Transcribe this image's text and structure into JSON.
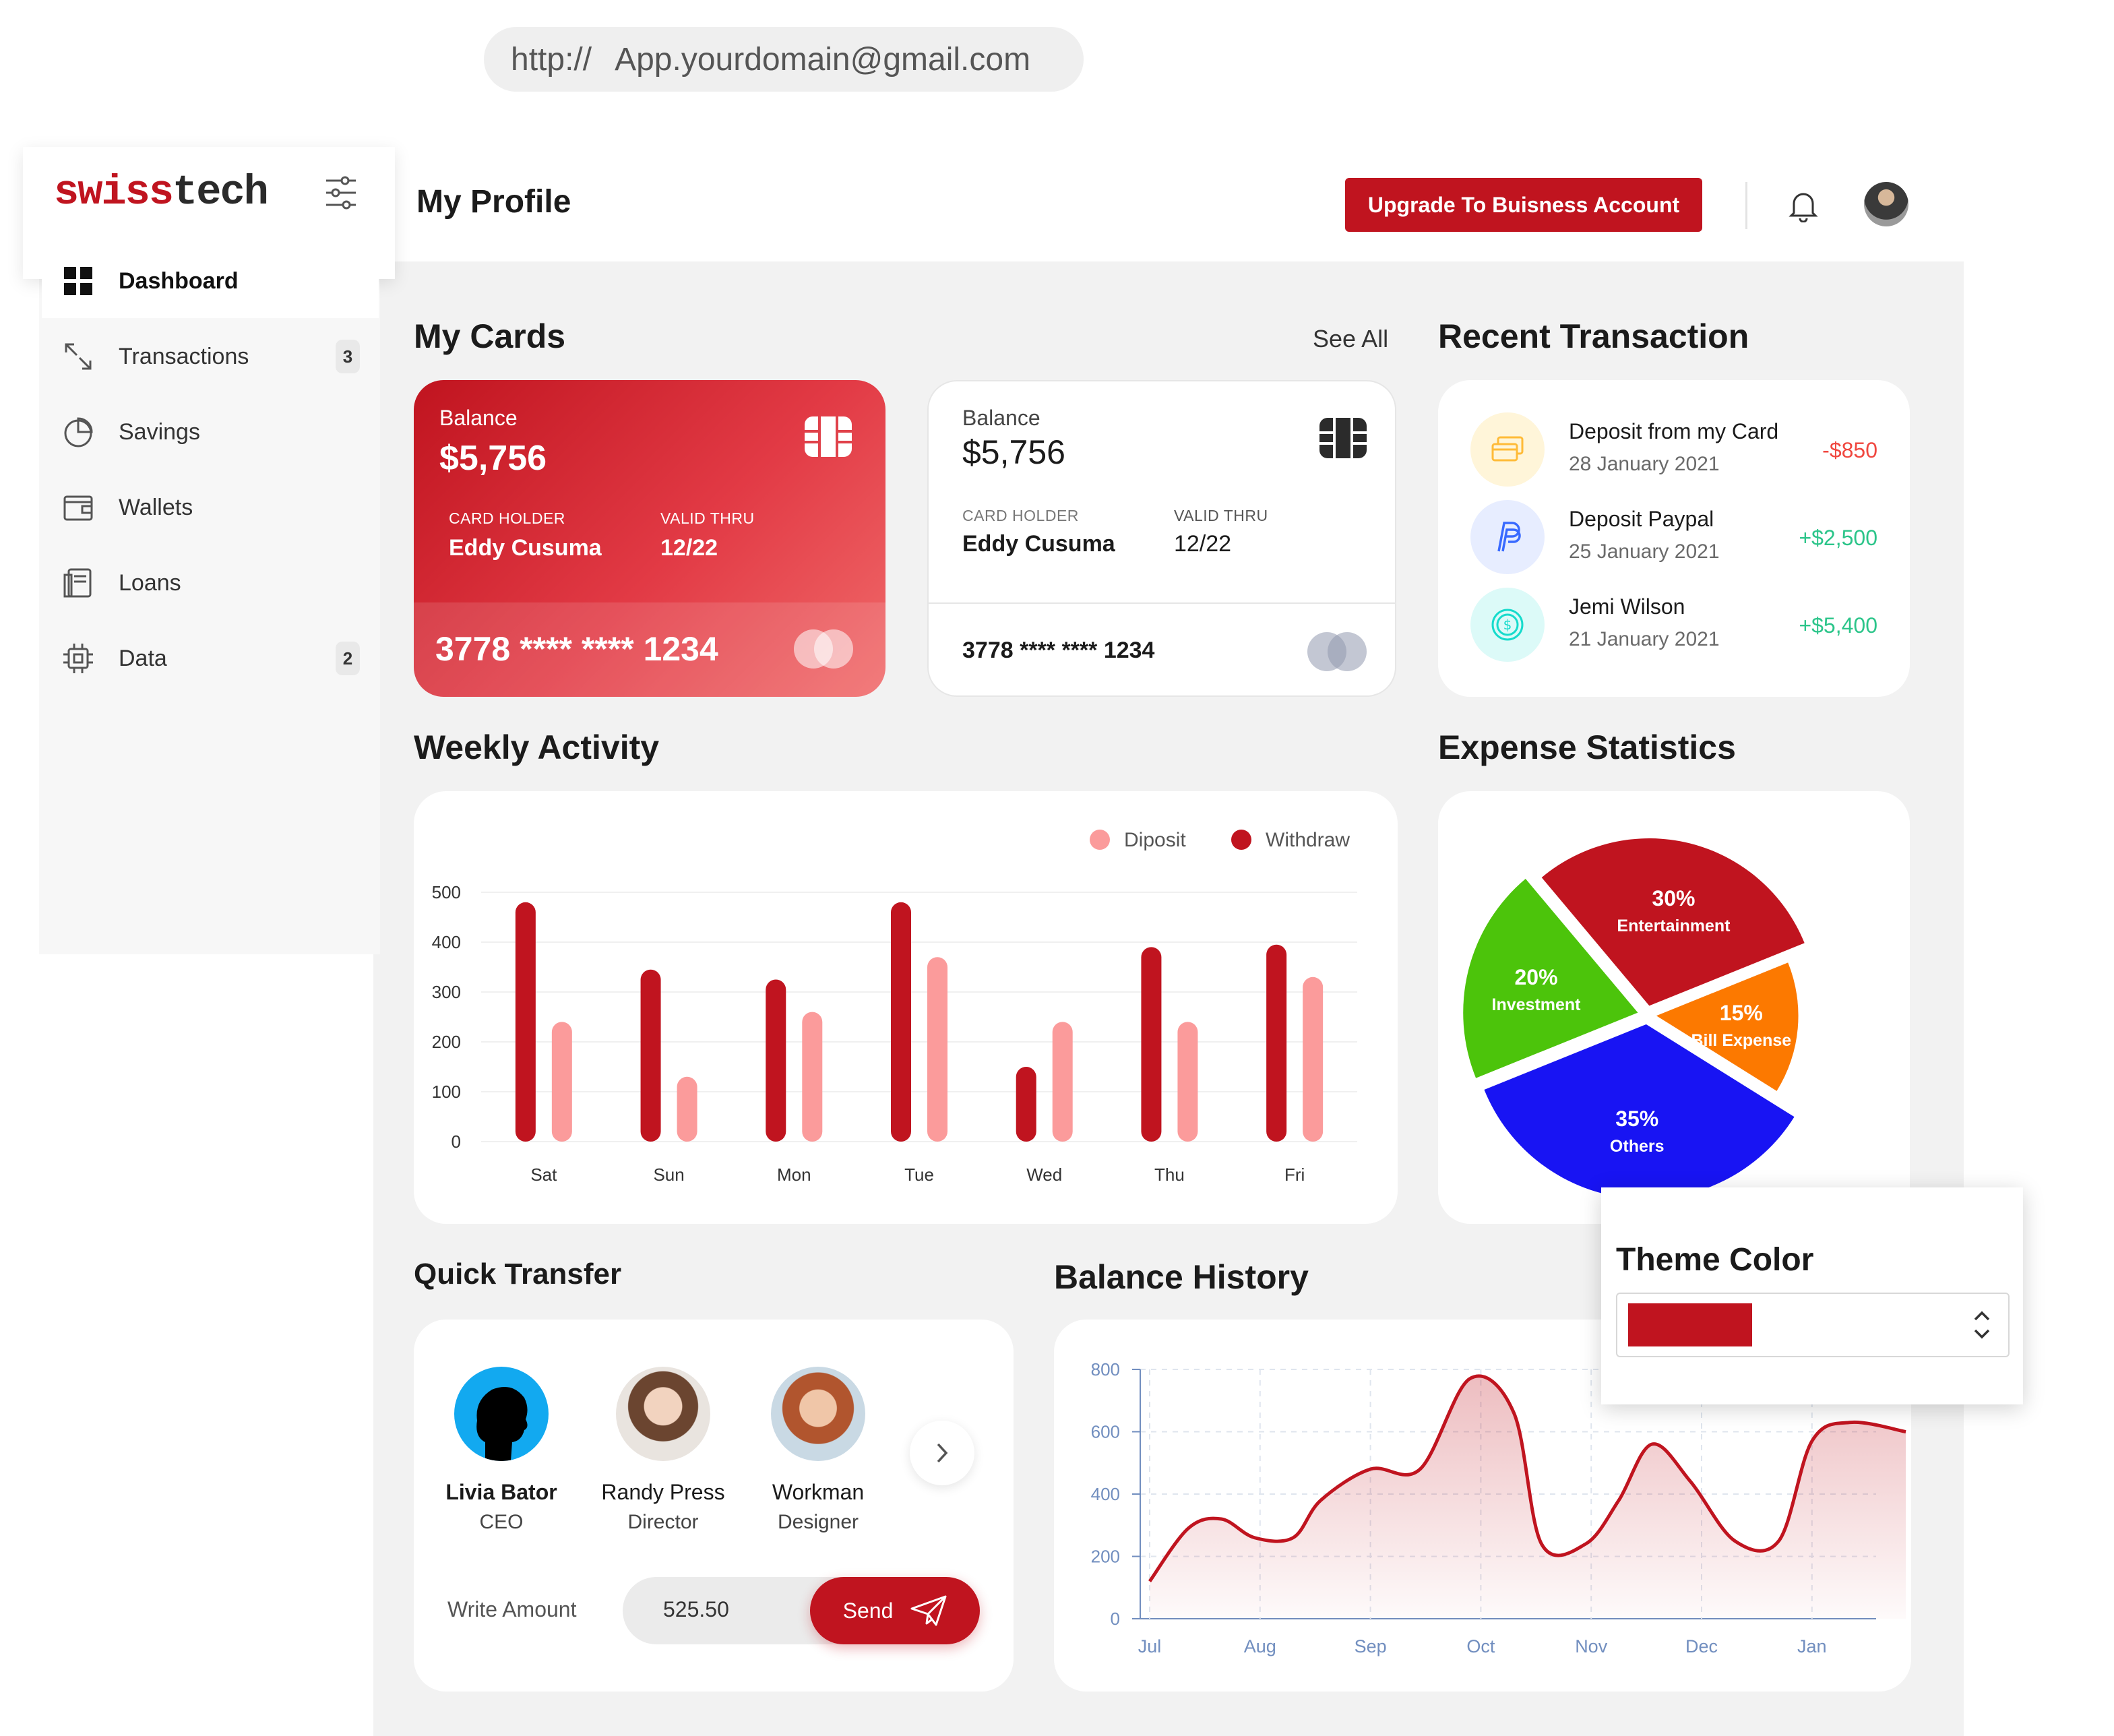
{
  "url": {
    "protocol": "http://",
    "address": "App.yourdomain@gmail.com"
  },
  "brand": {
    "part1": "swiss",
    "part2": "tech",
    "accent": "#c0141f"
  },
  "sidebar": {
    "items": [
      {
        "label": "Dashboard",
        "icon": "grid-icon",
        "active": true
      },
      {
        "label": "Transactions",
        "icon": "arrows-icon",
        "badge": "3"
      },
      {
        "label": "Savings",
        "icon": "pie-icon"
      },
      {
        "label": "Wallets",
        "icon": "wallet-icon"
      },
      {
        "label": "Loans",
        "icon": "document-icon"
      },
      {
        "label": "Data",
        "icon": "chip-icon",
        "badge": "2"
      }
    ]
  },
  "header": {
    "title": "My Profile",
    "upgrade_label": "Upgrade To Buisness Account"
  },
  "cards_section": {
    "title": "My Cards",
    "see_all": "See All",
    "cards": [
      {
        "balance_label": "Balance",
        "balance": "$5,756",
        "holder_label": "CARD HOLDER",
        "holder": "Eddy Cusuma",
        "valid_label": "VALID THRU",
        "valid": "12/22",
        "number": "3778 **** **** 1234"
      },
      {
        "balance_label": "Balance",
        "balance": "$5,756",
        "holder_label": "CARD HOLDER",
        "holder": "Eddy Cusuma",
        "valid_label": "VALID THRU",
        "valid": "12/22",
        "number": "3778 **** **** 1234"
      }
    ]
  },
  "transactions": {
    "title": "Recent Transaction",
    "items": [
      {
        "title": "Deposit from my Card",
        "date": "28 January 2021",
        "amount": "-$850",
        "color": "#f0473f",
        "icon": "card-icon"
      },
      {
        "title": "Deposit Paypal",
        "date": "25 January 2021",
        "amount": "+$2,500",
        "color": "#2cc58a",
        "icon": "paypal-icon"
      },
      {
        "title": "Jemi Wilson",
        "date": "21 January 2021",
        "amount": "+$5,400",
        "color": "#2cc58a",
        "icon": "dollar-icon"
      }
    ]
  },
  "weekly": {
    "title": "Weekly Activity"
  },
  "expense": {
    "title": "Expense Statistics"
  },
  "quick_transfer": {
    "title": "Quick Transfer",
    "people": [
      {
        "name": "Livia Bator",
        "role": "CEO"
      },
      {
        "name": "Randy Press",
        "role": "Director"
      },
      {
        "name": "Workman",
        "role": "Designer"
      }
    ],
    "amount_label": "Write Amount",
    "amount_value": "525.50",
    "send_label": "Send"
  },
  "balance_history": {
    "title": "Balance History"
  },
  "theme": {
    "title": "Theme Color",
    "selected_color": "#c0141f"
  },
  "chart_data": [
    {
      "type": "bar",
      "title": "Weekly Activity",
      "categories": [
        "Sat",
        "Sun",
        "Mon",
        "Tue",
        "Wed",
        "Thu",
        "Fri"
      ],
      "series": [
        {
          "name": "Diposit",
          "color": "#fb9b9b",
          "values": [
            240,
            130,
            260,
            370,
            240,
            240,
            330
          ]
        },
        {
          "name": "Withdraw",
          "color": "#c0141f",
          "values": [
            480,
            345,
            325,
            480,
            150,
            390,
            395
          ]
        }
      ],
      "ylim": [
        0,
        500
      ],
      "yticks": [
        0,
        100,
        200,
        300,
        400,
        500
      ],
      "legend": "top-right"
    },
    {
      "type": "pie",
      "title": "Expense Statistics",
      "slices": [
        {
          "label": "Entertainment",
          "value": 30,
          "color": "#c0141f"
        },
        {
          "label": "Bill Expense",
          "value": 15,
          "color": "#fc7900"
        },
        {
          "label": "Others",
          "value": 35,
          "color": "#1814f3"
        },
        {
          "label": "Investment",
          "value": 20,
          "color": "#4cc40b"
        }
      ]
    },
    {
      "type": "area",
      "title": "Balance History",
      "categories": [
        "Jul",
        "Aug",
        "Sep",
        "Oct",
        "Nov",
        "Dec",
        "Jan"
      ],
      "ylim": [
        0,
        800
      ],
      "yticks": [
        0,
        200,
        400,
        600,
        800
      ],
      "color": "#c0141f",
      "x": [
        0,
        0.35,
        0.65,
        0.95,
        1.3,
        1.55,
        2.0,
        2.45,
        2.9,
        3.3,
        3.55,
        3.95,
        4.25,
        4.55,
        4.9,
        5.3,
        5.7,
        6.0,
        6.35,
        6.85
      ],
      "values": [
        120,
        290,
        320,
        260,
        260,
        380,
        480,
        480,
        770,
        660,
        240,
        240,
        380,
        560,
        440,
        250,
        250,
        570,
        630,
        600
      ]
    }
  ]
}
